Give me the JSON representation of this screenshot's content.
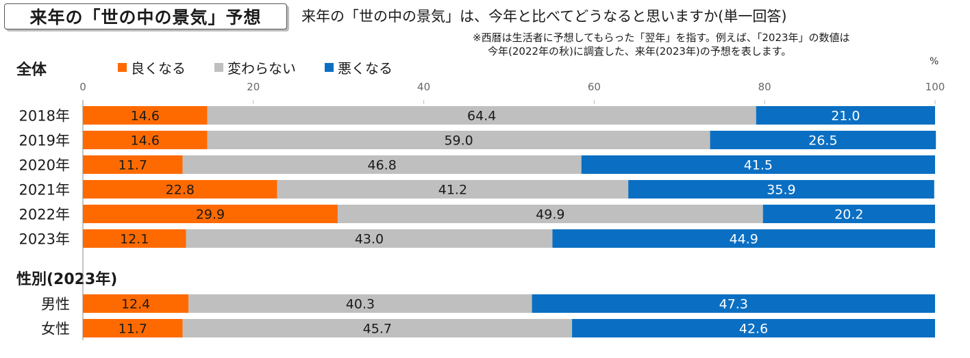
{
  "title": "来年の「世の中の景気」予想",
  "question": "来年の「世の中の景気」は、今年と比べてどうなると思いますか(単一回答)",
  "note_lines": [
    "※西暦は生活者に予想してもらった「翌年」を指す。例えば、「2023年」の数値は",
    "今年(2022年の秋)に調査した、来年(2023年)の予想を表します。"
  ],
  "section_labels": {
    "overall": "全体",
    "gender": "性別(2023年)"
  },
  "chart_data": {
    "type": "bar",
    "orientation": "horizontal",
    "stacked": true,
    "unit": "%",
    "xlim": [
      0,
      100
    ],
    "ticks": [
      0,
      20,
      40,
      60,
      80,
      100
    ],
    "legend": [
      {
        "name": "良くなる",
        "color": "#ff6a00"
      },
      {
        "name": "変わらない",
        "color": "#bfbfbf"
      },
      {
        "name": "悪くなる",
        "color": "#0a6fc2"
      }
    ],
    "groups": [
      {
        "id": "overall",
        "categories": [
          "2018年",
          "2019年",
          "2020年",
          "2021年",
          "2022年",
          "2023年"
        ],
        "series": [
          {
            "name": "良くなる",
            "values": [
              14.6,
              14.6,
              11.7,
              22.8,
              29.9,
              12.1
            ]
          },
          {
            "name": "変わらない",
            "values": [
              64.4,
              59.0,
              46.8,
              41.2,
              49.9,
              43.0
            ]
          },
          {
            "name": "悪くなる",
            "values": [
              21.0,
              26.5,
              41.5,
              35.9,
              20.2,
              44.9
            ]
          }
        ]
      },
      {
        "id": "gender",
        "categories": [
          "男性",
          "女性"
        ],
        "series": [
          {
            "name": "良くなる",
            "values": [
              12.4,
              11.7
            ]
          },
          {
            "name": "変わらない",
            "values": [
              40.3,
              45.7
            ]
          },
          {
            "name": "悪くなる",
            "values": [
              47.3,
              42.6
            ]
          }
        ]
      }
    ]
  }
}
